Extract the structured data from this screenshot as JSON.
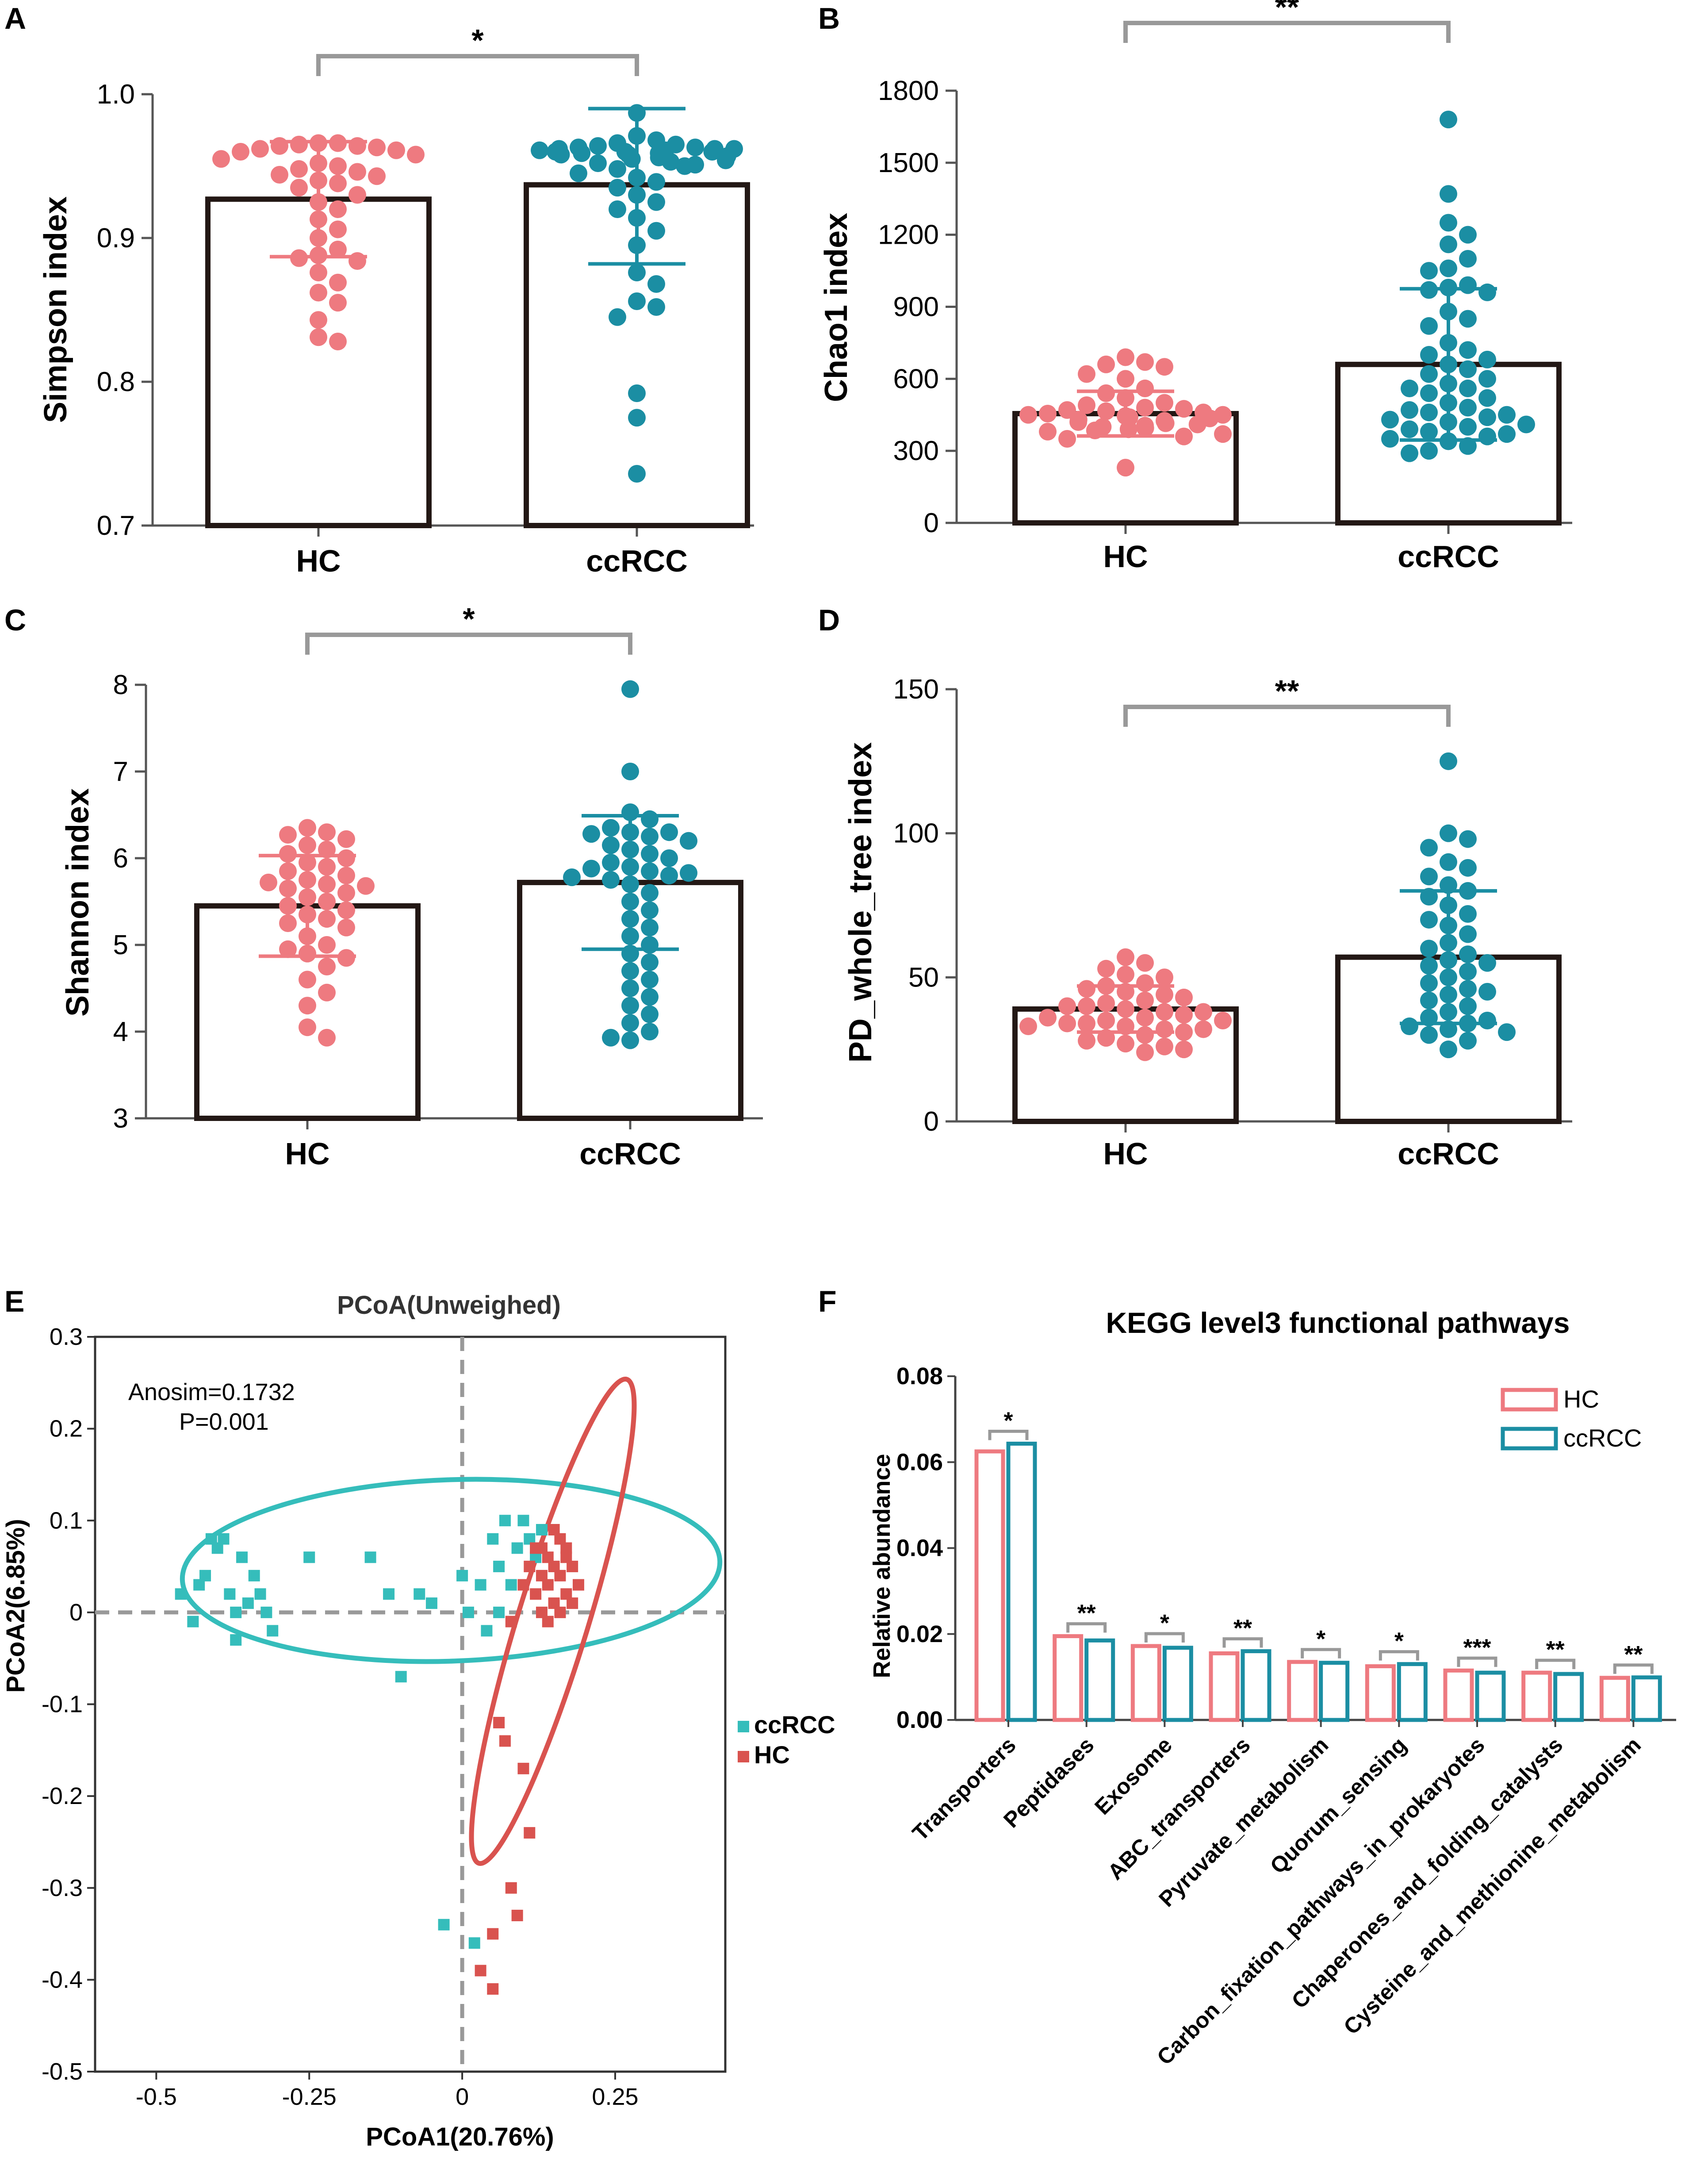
{
  "colors": {
    "hc": "#EE7A80",
    "ccrcc": "#1B8EA3",
    "pcoa_hc": "#D9534F",
    "pcoa_ccrcc": "#35BDBB",
    "bracket": "#999999",
    "bar": "#231815"
  },
  "chart_data": [
    {
      "panel": "A",
      "type": "bar",
      "ylabel": "Simpson index",
      "categories": [
        "HC",
        "ccRCC"
      ],
      "ylim": [
        0.7,
        1.0
      ],
      "yticks": [
        0.7,
        0.8,
        0.9,
        1.0
      ],
      "ytick_labels": [
        "0.7",
        "0.8",
        "0.9",
        "1.0"
      ],
      "means": [
        0.927,
        0.937
      ],
      "error": [
        [
          0.887,
          0.967
        ],
        [
          0.882,
          0.99
        ]
      ],
      "significance": "*",
      "points": [
        [
          0.966,
          0.966,
          0.965,
          0.964,
          0.964,
          0.963,
          0.962,
          0.961,
          0.96,
          0.958,
          0.955,
          0.952,
          0.95,
          0.948,
          0.946,
          0.944,
          0.943,
          0.94,
          0.938,
          0.935,
          0.93,
          0.925,
          0.92,
          0.913,
          0.906,
          0.9,
          0.892,
          0.888,
          0.886,
          0.884,
          0.876,
          0.869,
          0.862,
          0.855,
          0.843,
          0.831,
          0.828
        ],
        [
          0.987,
          0.971,
          0.968,
          0.966,
          0.965,
          0.964,
          0.963,
          0.963,
          0.962,
          0.962,
          0.962,
          0.961,
          0.961,
          0.96,
          0.96,
          0.96,
          0.959,
          0.959,
          0.958,
          0.958,
          0.957,
          0.956,
          0.955,
          0.954,
          0.953,
          0.952,
          0.951,
          0.95,
          0.948,
          0.945,
          0.942,
          0.939,
          0.935,
          0.93,
          0.925,
          0.92,
          0.914,
          0.905,
          0.895,
          0.876,
          0.868,
          0.856,
          0.852,
          0.845,
          0.792,
          0.775,
          0.736
        ]
      ]
    },
    {
      "panel": "B",
      "type": "bar",
      "ylabel": "Chao1 index",
      "categories": [
        "HC",
        "ccRCC"
      ],
      "ylim": [
        0,
        1800
      ],
      "yticks": [
        0,
        300,
        600,
        900,
        1200,
        1500,
        1800
      ],
      "ytick_labels": [
        "0",
        "300",
        "600",
        "900",
        "1200",
        "1500",
        "1800"
      ],
      "means": [
        455,
        660
      ],
      "error": [
        [
          362,
          548
        ],
        [
          345,
          975
        ]
      ],
      "significance": "**",
      "points": [
        [
          690,
          670,
          660,
          650,
          620,
          600,
          560,
          540,
          520,
          500,
          490,
          480,
          475,
          470,
          465,
          460,
          455,
          450,
          450,
          445,
          440,
          435,
          430,
          425,
          420,
          415,
          410,
          405,
          400,
          395,
          390,
          385,
          380,
          370,
          360,
          350,
          230
        ],
        [
          1680,
          1370,
          1250,
          1200,
          1160,
          1100,
          1060,
          1050,
          990,
          980,
          970,
          960,
          880,
          850,
          820,
          750,
          720,
          700,
          680,
          660,
          640,
          620,
          600,
          580,
          560,
          560,
          540,
          520,
          500,
          480,
          470,
          460,
          450,
          440,
          430,
          420,
          410,
          400,
          390,
          380,
          370,
          360,
          350,
          340,
          320,
          300,
          290
        ]
      ]
    },
    {
      "panel": "C",
      "type": "bar",
      "ylabel": "Shannon index",
      "categories": [
        "HC",
        "ccRCC"
      ],
      "ylim": [
        3,
        8
      ],
      "yticks": [
        3,
        4,
        5,
        6,
        7,
        8
      ],
      "ytick_labels": [
        "3",
        "4",
        "5",
        "6",
        "7",
        "8"
      ],
      "means": [
        5.45,
        5.72
      ],
      "error": [
        [
          4.87,
          6.03
        ],
        [
          4.95,
          6.49
        ]
      ],
      "significance": "*",
      "points": [
        [
          6.35,
          6.3,
          6.27,
          6.22,
          6.15,
          6.1,
          6.05,
          6.0,
          5.95,
          5.9,
          5.85,
          5.8,
          5.75,
          5.72,
          5.7,
          5.68,
          5.65,
          5.6,
          5.55,
          5.5,
          5.45,
          5.4,
          5.35,
          5.3,
          5.25,
          5.2,
          5.1,
          5.0,
          4.95,
          4.9,
          4.85,
          4.75,
          4.6,
          4.45,
          4.3,
          4.05,
          3.93
        ],
        [
          7.95,
          7.0,
          6.53,
          6.45,
          6.35,
          6.3,
          6.3,
          6.28,
          6.25,
          6.2,
          6.15,
          6.1,
          6.05,
          6.0,
          5.95,
          5.9,
          5.88,
          5.85,
          5.83,
          5.8,
          5.78,
          5.75,
          5.7,
          5.6,
          5.5,
          5.4,
          5.3,
          5.2,
          5.1,
          5.0,
          4.9,
          4.8,
          4.7,
          4.6,
          4.5,
          4.4,
          4.3,
          4.2,
          4.1,
          4.0,
          3.93,
          3.9
        ]
      ]
    },
    {
      "panel": "D",
      "type": "bar",
      "ylabel": "PD_whole_tree index",
      "categories": [
        "HC",
        "ccRCC"
      ],
      "ylim": [
        0,
        150
      ],
      "yticks": [
        0,
        50,
        100,
        150
      ],
      "ytick_labels": [
        "0",
        "50",
        "100",
        "150"
      ],
      "means": [
        39,
        57
      ],
      "error": [
        [
          31,
          47
        ],
        [
          34,
          80
        ]
      ],
      "significance": "**",
      "points": [
        [
          57,
          55,
          53,
          51,
          50,
          48,
          47,
          46,
          45,
          44,
          43,
          42,
          41,
          40,
          40,
          39,
          38,
          38,
          37,
          36,
          36,
          35,
          35,
          34,
          34,
          33,
          33,
          32,
          32,
          31,
          30,
          29,
          28,
          27,
          26,
          25,
          24
        ],
        [
          125,
          100,
          98,
          95,
          90,
          88,
          85,
          82,
          80,
          78,
          75,
          72,
          70,
          68,
          65,
          62,
          60,
          58,
          56,
          55,
          54,
          52,
          50,
          48,
          46,
          45,
          44,
          42,
          40,
          38,
          36,
          35,
          34,
          33,
          32,
          31,
          30,
          28,
          25
        ]
      ]
    },
    {
      "panel": "E",
      "type": "scatter",
      "title": "PCoA(Unweighed)",
      "xlabel": "PCoA1(20.76%)",
      "ylabel": "PCoA2(6.85%)",
      "xlim": [
        -0.6,
        0.43
      ],
      "ylim": [
        -0.5,
        0.3
      ],
      "xticks": [
        -0.5,
        -0.25,
        0,
        0.25
      ],
      "xtick_labels": [
        "-0.5",
        "-0.25",
        "0",
        "0.25"
      ],
      "yticks": [
        -0.5,
        -0.4,
        -0.3,
        -0.2,
        -0.1,
        0,
        0.1,
        0.2,
        0.3
      ],
      "ytick_labels": [
        "-0.5",
        "-0.4",
        "-0.3",
        "-0.2",
        "-0.1",
        "0",
        "0.1",
        "0.2",
        "0.3"
      ],
      "annotation_line1": "Anosim=0.1732",
      "annotation_line2": "P=0.001",
      "series": [
        {
          "name": "ccRCC",
          "points": [
            [
              -0.46,
              0.02
            ],
            [
              -0.44,
              -0.01
            ],
            [
              -0.43,
              0.03
            ],
            [
              -0.42,
              0.04
            ],
            [
              -0.41,
              0.08
            ],
            [
              -0.4,
              0.07
            ],
            [
              -0.39,
              0.08
            ],
            [
              -0.38,
              0.02
            ],
            [
              -0.37,
              0.0
            ],
            [
              -0.37,
              -0.03
            ],
            [
              -0.36,
              0.06
            ],
            [
              -0.35,
              0.01
            ],
            [
              -0.34,
              0.04
            ],
            [
              -0.33,
              0.02
            ],
            [
              -0.32,
              0.0
            ],
            [
              -0.31,
              -0.02
            ],
            [
              -0.25,
              0.06
            ],
            [
              -0.15,
              0.06
            ],
            [
              -0.12,
              0.02
            ],
            [
              -0.1,
              -0.07
            ],
            [
              -0.07,
              0.02
            ],
            [
              -0.05,
              0.01
            ],
            [
              0.0,
              0.04
            ],
            [
              0.01,
              0.0
            ],
            [
              0.03,
              0.03
            ],
            [
              0.05,
              0.08
            ],
            [
              0.06,
              0.05
            ],
            [
              0.07,
              0.1
            ],
            [
              0.08,
              0.03
            ],
            [
              0.09,
              0.07
            ],
            [
              0.1,
              0.1
            ],
            [
              0.11,
              0.08
            ],
            [
              0.12,
              0.06
            ],
            [
              0.13,
              0.09
            ],
            [
              -0.03,
              -0.34
            ],
            [
              0.02,
              -0.36
            ],
            [
              0.04,
              -0.02
            ],
            [
              0.06,
              0.0
            ]
          ]
        },
        {
          "name": "HC",
          "points": [
            [
              0.1,
              -0.17
            ],
            [
              0.11,
              -0.24
            ],
            [
              0.08,
              -0.3
            ],
            [
              0.09,
              -0.33
            ],
            [
              0.05,
              -0.35
            ],
            [
              0.03,
              -0.39
            ],
            [
              0.05,
              -0.41
            ],
            [
              0.07,
              -0.14
            ],
            [
              0.06,
              -0.12
            ],
            [
              0.08,
              -0.01
            ],
            [
              0.1,
              0.03
            ],
            [
              0.11,
              0.05
            ],
            [
              0.12,
              0.02
            ],
            [
              0.12,
              0.07
            ],
            [
              0.13,
              0.04
            ],
            [
              0.13,
              0.0
            ],
            [
              0.14,
              0.06
            ],
            [
              0.14,
              0.03
            ],
            [
              0.15,
              0.05
            ],
            [
              0.15,
              0.01
            ],
            [
              0.16,
              0.08
            ],
            [
              0.16,
              0.04
            ],
            [
              0.17,
              0.02
            ],
            [
              0.17,
              0.06
            ],
            [
              0.18,
              0.05
            ],
            [
              0.18,
              0.01
            ],
            [
              0.19,
              0.03
            ],
            [
              0.15,
              0.09
            ],
            [
              0.14,
              -0.01
            ],
            [
              0.16,
              0.0
            ],
            [
              0.13,
              0.07
            ],
            [
              0.17,
              0.07
            ]
          ]
        }
      ],
      "legend": [
        "ccRCC",
        "HC"
      ]
    },
    {
      "panel": "F",
      "type": "bar",
      "title": "KEGG level3 functional pathways",
      "ylabel": "Relative abundance",
      "ylim": [
        0,
        0.08
      ],
      "yticks": [
        0,
        0.02,
        0.04,
        0.06,
        0.08
      ],
      "ytick_labels": [
        "0.00",
        "0.02",
        "0.04",
        "0.06",
        "0.08"
      ],
      "categories": [
        "Transporters",
        "Peptidases",
        "Exosome",
        "ABC_transporters",
        "Pyruvate_metabolism",
        "Quorum_sensing",
        "Carbon_fixation_pathways_in_prokaryotes",
        "Chaperones_and_folding_catalysts",
        "Cysteine_and_methionine_metabolism"
      ],
      "series": [
        {
          "name": "HC",
          "values": [
            0.0625,
            0.0195,
            0.0172,
            0.0155,
            0.0135,
            0.0125,
            0.0115,
            0.011,
            0.0098
          ]
        },
        {
          "name": "ccRCC",
          "values": [
            0.0643,
            0.0185,
            0.0168,
            0.016,
            0.0133,
            0.013,
            0.011,
            0.0107,
            0.0099
          ]
        }
      ],
      "significance": [
        "*",
        "**",
        "*",
        "**",
        "*",
        "*",
        "***",
        "**",
        "**"
      ],
      "legend": [
        "HC",
        "ccRCC"
      ]
    }
  ]
}
